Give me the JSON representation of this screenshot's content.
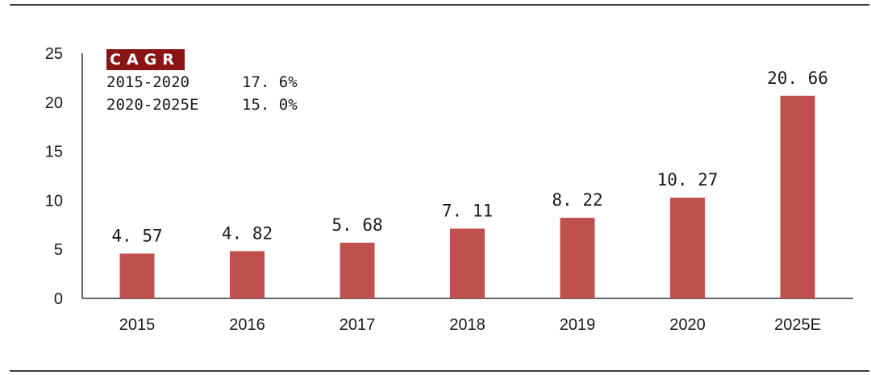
{
  "chart_data": {
    "type": "bar",
    "categories": [
      "2015",
      "2016",
      "2017",
      "2018",
      "2019",
      "2020",
      "2025E"
    ],
    "values": [
      4.57,
      4.82,
      5.68,
      7.11,
      8.22,
      10.27,
      20.66
    ],
    "data_labels": [
      "4. 57",
      "4. 82",
      "5. 68",
      "7. 11",
      "8. 22",
      "10. 27",
      "20. 66"
    ],
    "y_ticks": [
      0,
      5,
      10,
      15,
      20,
      25
    ],
    "ylim": [
      0,
      25
    ],
    "grid": false,
    "bar_color": "#c0504d",
    "title": "",
    "xlabel": "",
    "ylabel": ""
  },
  "legend": {
    "title": "CAGR",
    "title_bg": "#8b1414",
    "rows": [
      {
        "period": "2015-2020",
        "rate": "17. 6%"
      },
      {
        "period": "2020-2025E",
        "rate": "15. 0%"
      }
    ],
    "placement": "top-left"
  }
}
